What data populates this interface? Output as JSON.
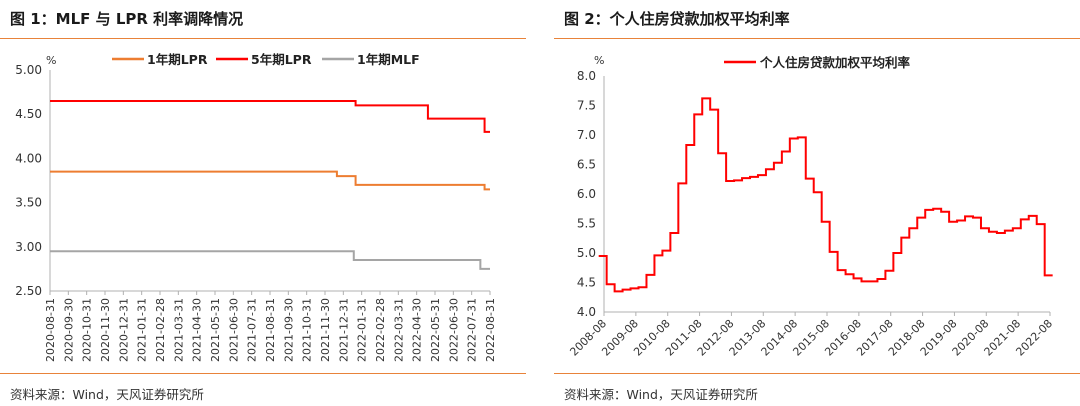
{
  "charts": [
    {
      "title": "图 1：MLF 与 LPR 利率调降情况",
      "source": "资料来源：Wind，天风证券研究所",
      "unit": "%",
      "legend": [
        "1年期LPR",
        "5年期LPR",
        "1年期MLF"
      ],
      "yticks": [
        "5.00",
        "4.50",
        "4.00",
        "3.50",
        "3.00",
        "2.50"
      ],
      "xticks": [
        "2020-08-31",
        "2020-09-30",
        "2020-10-31",
        "2020-11-30",
        "2020-12-31",
        "2021-01-31",
        "2021-02-28",
        "2021-03-31",
        "2021-04-30",
        "2021-05-31",
        "2021-06-30",
        "2021-07-31",
        "2021-08-31",
        "2021-09-30",
        "2021-10-31",
        "2021-11-30",
        "2021-12-31",
        "2022-01-31",
        "2022-02-28",
        "2022-03-31",
        "2022-04-30",
        "2022-05-31",
        "2022-06-30",
        "2022-07-31",
        "2022-08-31"
      ]
    },
    {
      "title": "图 2：个人住房贷款加权平均利率",
      "source": "资料来源：Wind，天风证券研究所",
      "unit": "%",
      "legend": [
        "个人住房贷款加权平均利率"
      ],
      "yticks": [
        "8.0",
        "7.5",
        "7.0",
        "6.5",
        "6.0",
        "5.5",
        "5.0",
        "4.5",
        "4.0"
      ],
      "xticks": [
        "2008-08",
        "2009-08",
        "2010-08",
        "2011-08",
        "2012-08",
        "2013-08",
        "2014-08",
        "2015-08",
        "2016-08",
        "2017-08",
        "2018-08",
        "2019-08",
        "2020-08",
        "2021-08",
        "2022-08"
      ]
    }
  ],
  "chart_data": [
    {
      "type": "line",
      "title": "图 1：MLF 与 LPR 利率调降情况",
      "ylabel": "%",
      "ylim": [
        2.5,
        5.0
      ],
      "x_range": [
        "2020-08-31",
        "2022-08-31"
      ],
      "grid": false,
      "legend_position": "top",
      "series": [
        {
          "name": "1年期LPR",
          "color": "#ed7d31",
          "steps": [
            {
              "from": "2020-08-31",
              "value": 3.85
            },
            {
              "from": "2021-12-20",
              "value": 3.8
            },
            {
              "from": "2022-01-20",
              "value": 3.7
            },
            {
              "from": "2022-08-22",
              "value": 3.65
            }
          ]
        },
        {
          "name": "5年期LPR",
          "color": "#ff0000",
          "steps": [
            {
              "from": "2020-08-31",
              "value": 4.65
            },
            {
              "from": "2022-01-20",
              "value": 4.6
            },
            {
              "from": "2022-05-20",
              "value": 4.45
            },
            {
              "from": "2022-08-22",
              "value": 4.3
            }
          ]
        },
        {
          "name": "1年期MLF",
          "color": "#a5a5a5",
          "steps": [
            {
              "from": "2020-08-31",
              "value": 2.95
            },
            {
              "from": "2022-01-17",
              "value": 2.85
            },
            {
              "from": "2022-08-15",
              "value": 2.75
            }
          ]
        }
      ]
    },
    {
      "type": "line",
      "title": "图 2：个人住房贷款加权平均利率",
      "ylabel": "%",
      "ylim": [
        4.0,
        8.0
      ],
      "x_range": [
        "2008-08",
        "2022-08"
      ],
      "grid": false,
      "legend_position": "top",
      "series": [
        {
          "name": "个人住房贷款加权平均利率",
          "color": "#ff0000",
          "step": true,
          "points": [
            [
              "2008-06",
              4.95
            ],
            [
              "2008-09",
              4.47
            ],
            [
              "2008-12",
              4.35
            ],
            [
              "2009-03",
              4.38
            ],
            [
              "2009-06",
              4.4
            ],
            [
              "2009-09",
              4.42
            ],
            [
              "2009-12",
              4.63
            ],
            [
              "2010-03",
              4.96
            ],
            [
              "2010-06",
              5.04
            ],
            [
              "2010-09",
              5.34
            ],
            [
              "2010-12",
              6.18
            ],
            [
              "2011-03",
              6.83
            ],
            [
              "2011-06",
              7.35
            ],
            [
              "2011-09",
              7.62
            ],
            [
              "2011-12",
              7.43
            ],
            [
              "2012-03",
              6.69
            ],
            [
              "2012-06",
              6.22
            ],
            [
              "2012-09",
              6.23
            ],
            [
              "2012-12",
              6.27
            ],
            [
              "2013-03",
              6.29
            ],
            [
              "2013-06",
              6.32
            ],
            [
              "2013-09",
              6.42
            ],
            [
              "2013-12",
              6.53
            ],
            [
              "2014-03",
              6.72
            ],
            [
              "2014-06",
              6.94
            ],
            [
              "2014-09",
              6.96
            ],
            [
              "2014-12",
              6.26
            ],
            [
              "2015-03",
              6.03
            ],
            [
              "2015-06",
              5.53
            ],
            [
              "2015-09",
              5.02
            ],
            [
              "2015-12",
              4.71
            ],
            [
              "2016-03",
              4.64
            ],
            [
              "2016-06",
              4.57
            ],
            [
              "2016-09",
              4.52
            ],
            [
              "2016-12",
              4.52
            ],
            [
              "2017-03",
              4.56
            ],
            [
              "2017-06",
              4.7
            ],
            [
              "2017-09",
              5.0
            ],
            [
              "2017-12",
              5.26
            ],
            [
              "2018-03",
              5.42
            ],
            [
              "2018-06",
              5.6
            ],
            [
              "2018-09",
              5.73
            ],
            [
              "2018-12",
              5.75
            ],
            [
              "2019-03",
              5.7
            ],
            [
              "2019-06",
              5.53
            ],
            [
              "2019-09",
              5.55
            ],
            [
              "2019-12",
              5.62
            ],
            [
              "2020-03",
              5.6
            ],
            [
              "2020-06",
              5.42
            ],
            [
              "2020-09",
              5.36
            ],
            [
              "2020-12",
              5.34
            ],
            [
              "2021-03",
              5.38
            ],
            [
              "2021-06",
              5.42
            ],
            [
              "2021-09",
              5.57
            ],
            [
              "2021-12",
              5.63
            ],
            [
              "2022-03",
              5.49
            ],
            [
              "2022-06",
              4.62
            ],
            [
              "2022-09",
              4.62
            ]
          ]
        }
      ]
    }
  ]
}
